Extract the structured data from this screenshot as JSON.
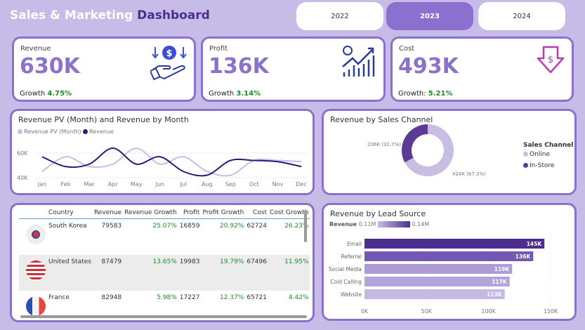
{
  "header": {
    "title_a": "Sales & Marketing",
    "title_b": "Dashboard",
    "years": [
      "2022",
      "2023",
      "2024"
    ],
    "selected_year": "2023"
  },
  "kpis": [
    {
      "label": "Revenue",
      "value": "630K",
      "growth_label": "Growth",
      "growth": "4.75%",
      "icon": "money-hand-icon"
    },
    {
      "label": "Profit",
      "value": "136K",
      "growth_label": "Growth",
      "growth": "3.14%",
      "icon": "growth-chart-icon"
    },
    {
      "label": "Cost",
      "value": "493K",
      "growth_label": "Growth:",
      "growth": "5.21%",
      "icon": "cost-down-icon"
    }
  ],
  "colors": {
    "accent": "#8a72cb",
    "dark": "#1f1f7a",
    "light": "#c8bde3",
    "positive": "#1f8a2a"
  },
  "chart_data": [
    {
      "type": "line",
      "title": "Revenue PV (Month) and Revenue by Month",
      "categories": [
        "Jan",
        "Feb",
        "Mar",
        "Apr",
        "May",
        "Jun",
        "Jul",
        "Aug",
        "Sep",
        "Oct",
        "Nov",
        "Dec"
      ],
      "yticks": [
        "40K",
        "60K"
      ],
      "ylim": [
        38,
        66
      ],
      "series": [
        {
          "name": "Revenue PV (Month)",
          "color": "#c8bde3",
          "values": [
            45,
            57,
            49,
            51,
            64,
            51,
            57,
            45,
            42,
            54,
            54,
            53
          ]
        },
        {
          "name": "Revenue",
          "color": "#1f1f7a",
          "values": [
            57,
            49,
            51,
            64,
            51,
            57,
            45,
            42,
            54,
            54,
            53,
            49
          ]
        }
      ]
    },
    {
      "type": "pie",
      "title": "Revenue by Sales Channel",
      "legend_title": "Sales Channel",
      "slices": [
        {
          "name": "Online",
          "value": 424,
          "label": "424K (67.3%)",
          "color": "#c8bde3"
        },
        {
          "name": "In-Store",
          "value": 206,
          "label": "206K (32.7%)",
          "color": "#5b3b94"
        }
      ]
    },
    {
      "type": "bar",
      "title": "Revenue by Lead Source",
      "legend_label": "Revenue",
      "legend_min": "0.11M",
      "legend_max": "0.14M",
      "categories": [
        "Email",
        "Referral",
        "Social Media",
        "Cold Calling",
        "Website"
      ],
      "values": [
        145,
        136,
        119,
        117,
        113
      ],
      "labels": [
        "145K",
        "136K",
        "119K",
        "117K",
        "113K"
      ],
      "xticks": [
        "0K",
        "50K",
        "100K",
        "150K"
      ],
      "xlim": [
        0,
        150
      ]
    }
  ],
  "table": {
    "headers": [
      "Country",
      "Revenue",
      "Revenue Growth",
      "Profit",
      "Profit Growth",
      "Cost",
      "Cost Growth"
    ],
    "rows": [
      {
        "flag": "south-korea",
        "cells": [
          "South Korea",
          "79583",
          "25.07%",
          "16859",
          "20.92%",
          "62724",
          "26.23%"
        ]
      },
      {
        "flag": "united-states",
        "cells": [
          "United States",
          "87479",
          "13.65%",
          "19983",
          "19.79%",
          "67496",
          "11.95%"
        ]
      },
      {
        "flag": "france",
        "cells": [
          "France",
          "82948",
          "5.98%",
          "17227",
          "12.37%",
          "65721",
          "4.42%"
        ]
      }
    ]
  }
}
